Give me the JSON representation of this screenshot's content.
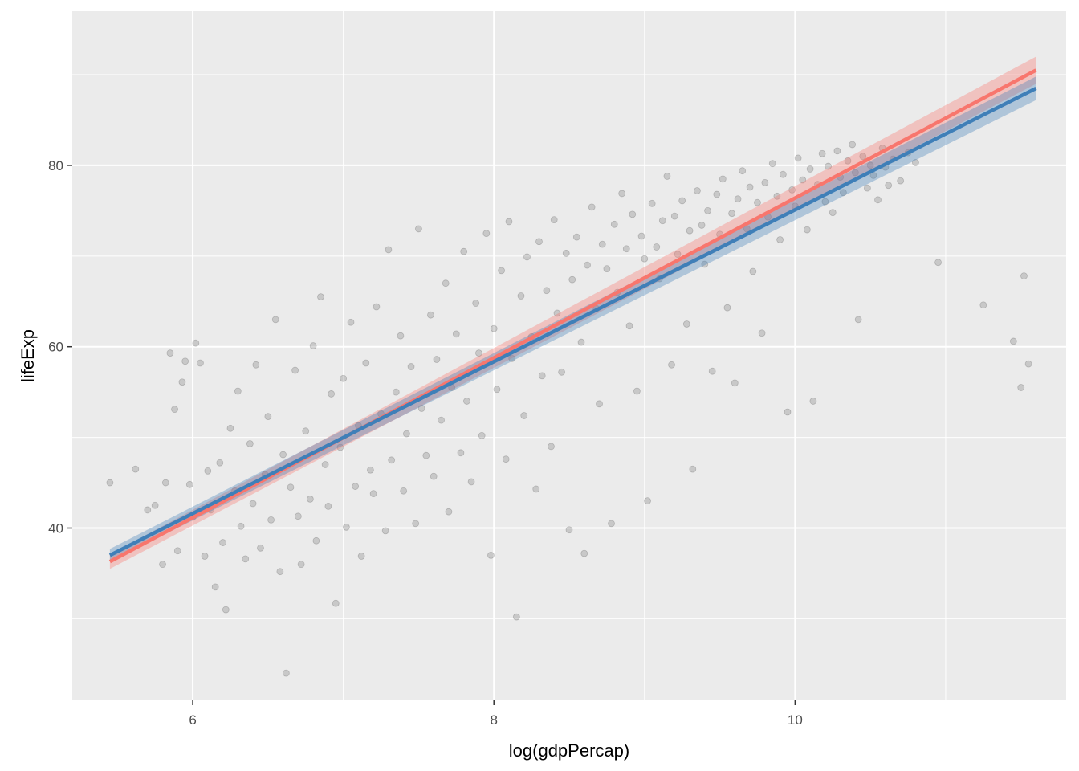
{
  "chart_data": {
    "type": "scatter",
    "title": "",
    "xlabel": "log(gdpPercap)",
    "ylabel": "lifeExp",
    "xlim": [
      5.2,
      11.8
    ],
    "ylim": [
      21,
      97
    ],
    "x_ticks": [
      6,
      8,
      10
    ],
    "y_ticks": [
      40,
      60,
      80
    ],
    "x_tick_labels": [
      "6",
      "8",
      "10"
    ],
    "y_tick_labels": [
      "40",
      "60",
      "80"
    ],
    "grid": true,
    "legend": "none",
    "colors": {
      "panel": "#ebebeb",
      "grid": "#ffffff",
      "points": "#000000",
      "series_1": "#f8766d",
      "series_2": "#3f7fb8"
    },
    "series": [
      {
        "type": "scatter",
        "point_opacity": 0.15,
        "points": [
          [
            5.45,
            45.0
          ],
          [
            5.62,
            46.5
          ],
          [
            5.7,
            42.0
          ],
          [
            5.75,
            42.5
          ],
          [
            5.8,
            36.0
          ],
          [
            5.82,
            45.0
          ],
          [
            5.85,
            59.3
          ],
          [
            5.88,
            53.1
          ],
          [
            5.9,
            37.5
          ],
          [
            5.93,
            56.1
          ],
          [
            5.95,
            58.4
          ],
          [
            5.98,
            44.8
          ],
          [
            6.0,
            41.2
          ],
          [
            6.02,
            60.4
          ],
          [
            6.05,
            58.2
          ],
          [
            6.08,
            36.9
          ],
          [
            6.1,
            46.3
          ],
          [
            6.12,
            42.0
          ],
          [
            6.15,
            33.5
          ],
          [
            6.18,
            47.2
          ],
          [
            6.2,
            38.4
          ],
          [
            6.22,
            31.0
          ],
          [
            6.25,
            51.0
          ],
          [
            6.28,
            44.1
          ],
          [
            6.3,
            55.1
          ],
          [
            6.32,
            40.2
          ],
          [
            6.35,
            36.6
          ],
          [
            6.38,
            49.3
          ],
          [
            6.4,
            42.7
          ],
          [
            6.42,
            58.0
          ],
          [
            6.45,
            37.8
          ],
          [
            6.48,
            45.9
          ],
          [
            6.5,
            52.3
          ],
          [
            6.52,
            40.9
          ],
          [
            6.55,
            63.0
          ],
          [
            6.58,
            35.2
          ],
          [
            6.6,
            48.1
          ],
          [
            6.62,
            24.0
          ],
          [
            6.65,
            44.5
          ],
          [
            6.68,
            57.4
          ],
          [
            6.7,
            41.3
          ],
          [
            6.72,
            36.0
          ],
          [
            6.75,
            50.7
          ],
          [
            6.78,
            43.2
          ],
          [
            6.8,
            60.1
          ],
          [
            6.82,
            38.6
          ],
          [
            6.85,
            65.5
          ],
          [
            6.88,
            47.0
          ],
          [
            6.9,
            42.4
          ],
          [
            6.92,
            54.8
          ],
          [
            6.95,
            31.7
          ],
          [
            6.98,
            48.9
          ],
          [
            7.0,
            56.5
          ],
          [
            7.02,
            40.1
          ],
          [
            7.05,
            62.7
          ],
          [
            7.08,
            44.6
          ],
          [
            7.1,
            51.3
          ],
          [
            7.12,
            36.9
          ],
          [
            7.15,
            58.2
          ],
          [
            7.18,
            46.4
          ],
          [
            7.2,
            43.8
          ],
          [
            7.22,
            64.4
          ],
          [
            7.25,
            52.6
          ],
          [
            7.28,
            39.7
          ],
          [
            7.3,
            70.7
          ],
          [
            7.32,
            47.5
          ],
          [
            7.35,
            55.0
          ],
          [
            7.38,
            61.2
          ],
          [
            7.4,
            44.1
          ],
          [
            7.42,
            50.4
          ],
          [
            7.45,
            57.8
          ],
          [
            7.48,
            40.5
          ],
          [
            7.5,
            73.0
          ],
          [
            7.52,
            53.2
          ],
          [
            7.55,
            48.0
          ],
          [
            7.58,
            63.5
          ],
          [
            7.6,
            45.7
          ],
          [
            7.62,
            58.6
          ],
          [
            7.65,
            51.9
          ],
          [
            7.68,
            67.0
          ],
          [
            7.7,
            41.8
          ],
          [
            7.72,
            55.5
          ],
          [
            7.75,
            61.4
          ],
          [
            7.78,
            48.3
          ],
          [
            7.8,
            70.5
          ],
          [
            7.82,
            54.0
          ],
          [
            7.85,
            45.1
          ],
          [
            7.88,
            64.8
          ],
          [
            7.9,
            59.3
          ],
          [
            7.92,
            50.2
          ],
          [
            7.95,
            72.5
          ],
          [
            7.98,
            37.0
          ],
          [
            8.0,
            62.0
          ],
          [
            8.02,
            55.3
          ],
          [
            8.05,
            68.4
          ],
          [
            8.08,
            47.6
          ],
          [
            8.1,
            73.8
          ],
          [
            8.12,
            58.7
          ],
          [
            8.15,
            30.2
          ],
          [
            8.18,
            65.6
          ],
          [
            8.2,
            52.4
          ],
          [
            8.22,
            69.9
          ],
          [
            8.25,
            61.1
          ],
          [
            8.28,
            44.3
          ],
          [
            8.3,
            71.6
          ],
          [
            8.32,
            56.8
          ],
          [
            8.35,
            66.2
          ],
          [
            8.38,
            49.0
          ],
          [
            8.4,
            74.0
          ],
          [
            8.42,
            63.7
          ],
          [
            8.45,
            57.2
          ],
          [
            8.48,
            70.3
          ],
          [
            8.5,
            39.8
          ],
          [
            8.52,
            67.4
          ],
          [
            8.55,
            72.1
          ],
          [
            8.58,
            60.5
          ],
          [
            8.6,
            37.2
          ],
          [
            8.62,
            69.0
          ],
          [
            8.65,
            75.4
          ],
          [
            8.68,
            64.2
          ],
          [
            8.7,
            53.7
          ],
          [
            8.72,
            71.3
          ],
          [
            8.75,
            68.6
          ],
          [
            8.78,
            40.5
          ],
          [
            8.8,
            73.5
          ],
          [
            8.82,
            66.0
          ],
          [
            8.85,
            76.9
          ],
          [
            8.88,
            70.8
          ],
          [
            8.9,
            62.3
          ],
          [
            8.92,
            74.6
          ],
          [
            8.95,
            55.1
          ],
          [
            8.98,
            72.2
          ],
          [
            9.0,
            69.7
          ],
          [
            9.02,
            43.0
          ],
          [
            9.05,
            75.8
          ],
          [
            9.08,
            71.0
          ],
          [
            9.1,
            67.5
          ],
          [
            9.12,
            73.9
          ],
          [
            9.15,
            78.8
          ],
          [
            9.18,
            58.0
          ],
          [
            9.2,
            74.4
          ],
          [
            9.22,
            70.2
          ],
          [
            9.25,
            76.1
          ],
          [
            9.28,
            62.5
          ],
          [
            9.3,
            72.8
          ],
          [
            9.32,
            46.5
          ],
          [
            9.35,
            77.2
          ],
          [
            9.38,
            73.4
          ],
          [
            9.4,
            69.1
          ],
          [
            9.42,
            75.0
          ],
          [
            9.45,
            57.3
          ],
          [
            9.48,
            76.8
          ],
          [
            9.5,
            72.4
          ],
          [
            9.52,
            78.5
          ],
          [
            9.55,
            64.3
          ],
          [
            9.58,
            74.7
          ],
          [
            9.6,
            56.0
          ],
          [
            9.62,
            76.3
          ],
          [
            9.65,
            79.4
          ],
          [
            9.68,
            73.0
          ],
          [
            9.7,
            77.6
          ],
          [
            9.72,
            68.3
          ],
          [
            9.75,
            75.9
          ],
          [
            9.78,
            61.5
          ],
          [
            9.8,
            78.1
          ],
          [
            9.82,
            74.3
          ],
          [
            9.85,
            80.2
          ],
          [
            9.88,
            76.6
          ],
          [
            9.9,
            71.8
          ],
          [
            9.92,
            79.0
          ],
          [
            9.95,
            52.8
          ],
          [
            9.98,
            77.3
          ],
          [
            10.0,
            75.5
          ],
          [
            10.02,
            80.8
          ],
          [
            10.05,
            78.4
          ],
          [
            10.08,
            72.9
          ],
          [
            10.1,
            79.6
          ],
          [
            10.12,
            54.0
          ],
          [
            10.15,
            77.9
          ],
          [
            10.18,
            81.3
          ],
          [
            10.2,
            76.0
          ],
          [
            10.22,
            79.9
          ],
          [
            10.25,
            74.8
          ],
          [
            10.28,
            81.6
          ],
          [
            10.3,
            78.7
          ],
          [
            10.32,
            77.0
          ],
          [
            10.35,
            80.5
          ],
          [
            10.38,
            82.3
          ],
          [
            10.4,
            79.2
          ],
          [
            10.42,
            63.0
          ],
          [
            10.45,
            81.0
          ],
          [
            10.48,
            77.5
          ],
          [
            10.5,
            80.0
          ],
          [
            10.52,
            78.9
          ],
          [
            10.55,
            76.2
          ],
          [
            10.58,
            81.9
          ],
          [
            10.6,
            79.8
          ],
          [
            10.62,
            77.8
          ],
          [
            10.65,
            80.7
          ],
          [
            10.7,
            78.3
          ],
          [
            10.75,
            81.4
          ],
          [
            10.8,
            80.3
          ],
          [
            10.95,
            69.3
          ],
          [
            11.25,
            64.6
          ],
          [
            11.45,
            60.6
          ],
          [
            11.5,
            55.5
          ],
          [
            11.52,
            67.8
          ],
          [
            11.55,
            58.1
          ]
        ]
      },
      {
        "type": "line",
        "color": "#f8766d",
        "line": [
          [
            5.45,
            36.3
          ],
          [
            11.6,
            90.5
          ]
        ],
        "ci_low": [
          [
            5.45,
            35.5
          ],
          [
            11.6,
            89.0
          ]
        ],
        "ci_high": [
          [
            5.45,
            37.1
          ],
          [
            11.6,
            92.0
          ]
        ]
      },
      {
        "type": "line",
        "color": "#3f7fb8",
        "line": [
          [
            5.45,
            37.0
          ],
          [
            11.6,
            88.5
          ]
        ],
        "ci_low": [
          [
            5.45,
            36.3
          ],
          [
            11.6,
            87.2
          ]
        ],
        "ci_high": [
          [
            5.45,
            37.7
          ],
          [
            11.6,
            89.8
          ]
        ]
      }
    ]
  }
}
